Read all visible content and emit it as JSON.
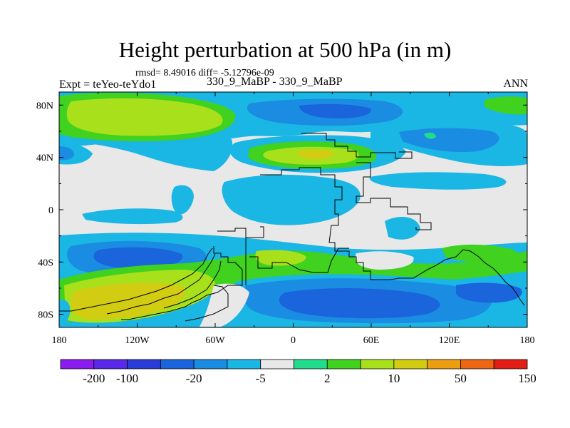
{
  "title": "Height perturbation at 500 hPa (in m)",
  "stats": "rmsd= 8.49016 diff= -5.12796e-09",
  "experiment": "Expt = teYeo-teYdo1",
  "cases": "330_9_MaBP - 330_9_MaBP",
  "season": "ANN",
  "colors": {
    "levels": [
      "#8a1cf0",
      "#5a28e8",
      "#2a3cd8",
      "#1a64dc",
      "#1a8ce2",
      "#1ab6e4",
      "#e8e8e8",
      "#20dc8c",
      "#40d21e",
      "#a8e01c",
      "#d2cc12",
      "#ec9e10",
      "#ec6614",
      "#e21e14"
    ],
    "coast": "#000000"
  },
  "chart_data": {
    "type": "contour-map",
    "variable": "Height perturbation at 500 hPa",
    "units": "m",
    "xlim": [
      -180,
      180
    ],
    "ylim": [
      -90,
      90
    ],
    "x_ticks": [
      {
        "value": -180,
        "label": "180"
      },
      {
        "value": -120,
        "label": "120W"
      },
      {
        "value": -60,
        "label": "60W"
      },
      {
        "value": 0,
        "label": "0"
      },
      {
        "value": 60,
        "label": "60E"
      },
      {
        "value": 120,
        "label": "120E"
      },
      {
        "value": 180,
        "label": "180"
      }
    ],
    "y_ticks": [
      {
        "value": 80,
        "label": "80N"
      },
      {
        "value": 40,
        "label": "40N"
      },
      {
        "value": 0,
        "label": "0"
      },
      {
        "value": -40,
        "label": "40S"
      },
      {
        "value": -80,
        "label": "80S"
      }
    ],
    "colorbar_levels": [
      -200,
      -100,
      -50,
      -20,
      -10,
      -5,
      -2,
      2,
      5,
      10,
      20,
      50,
      100,
      150
    ],
    "colorbar_labels": [
      {
        "value": -200,
        "label": "-200"
      },
      {
        "value": -100,
        "label": "-100"
      },
      {
        "value": -20,
        "label": "-20"
      },
      {
        "value": -5,
        "label": "-5"
      },
      {
        "value": 2,
        "label": "2"
      },
      {
        "value": 10,
        "label": "10"
      },
      {
        "value": 50,
        "label": "50"
      },
      {
        "value": 150,
        "label": "150"
      }
    ],
    "regions": [
      {
        "name": "nh-pacific-high",
        "lon": -135,
        "lat": 72,
        "value": 15
      },
      {
        "name": "nh-atlantic-high",
        "lon": 25,
        "lat": 42,
        "value": 20
      },
      {
        "name": "sh-pacific-high",
        "lon": -125,
        "lat": -65,
        "value": 40
      },
      {
        "name": "sh-indian-low",
        "lon": 80,
        "lat": -70,
        "value": -15
      },
      {
        "name": "sh-pacific-low",
        "lon": -130,
        "lat": -35,
        "value": -12
      }
    ]
  }
}
